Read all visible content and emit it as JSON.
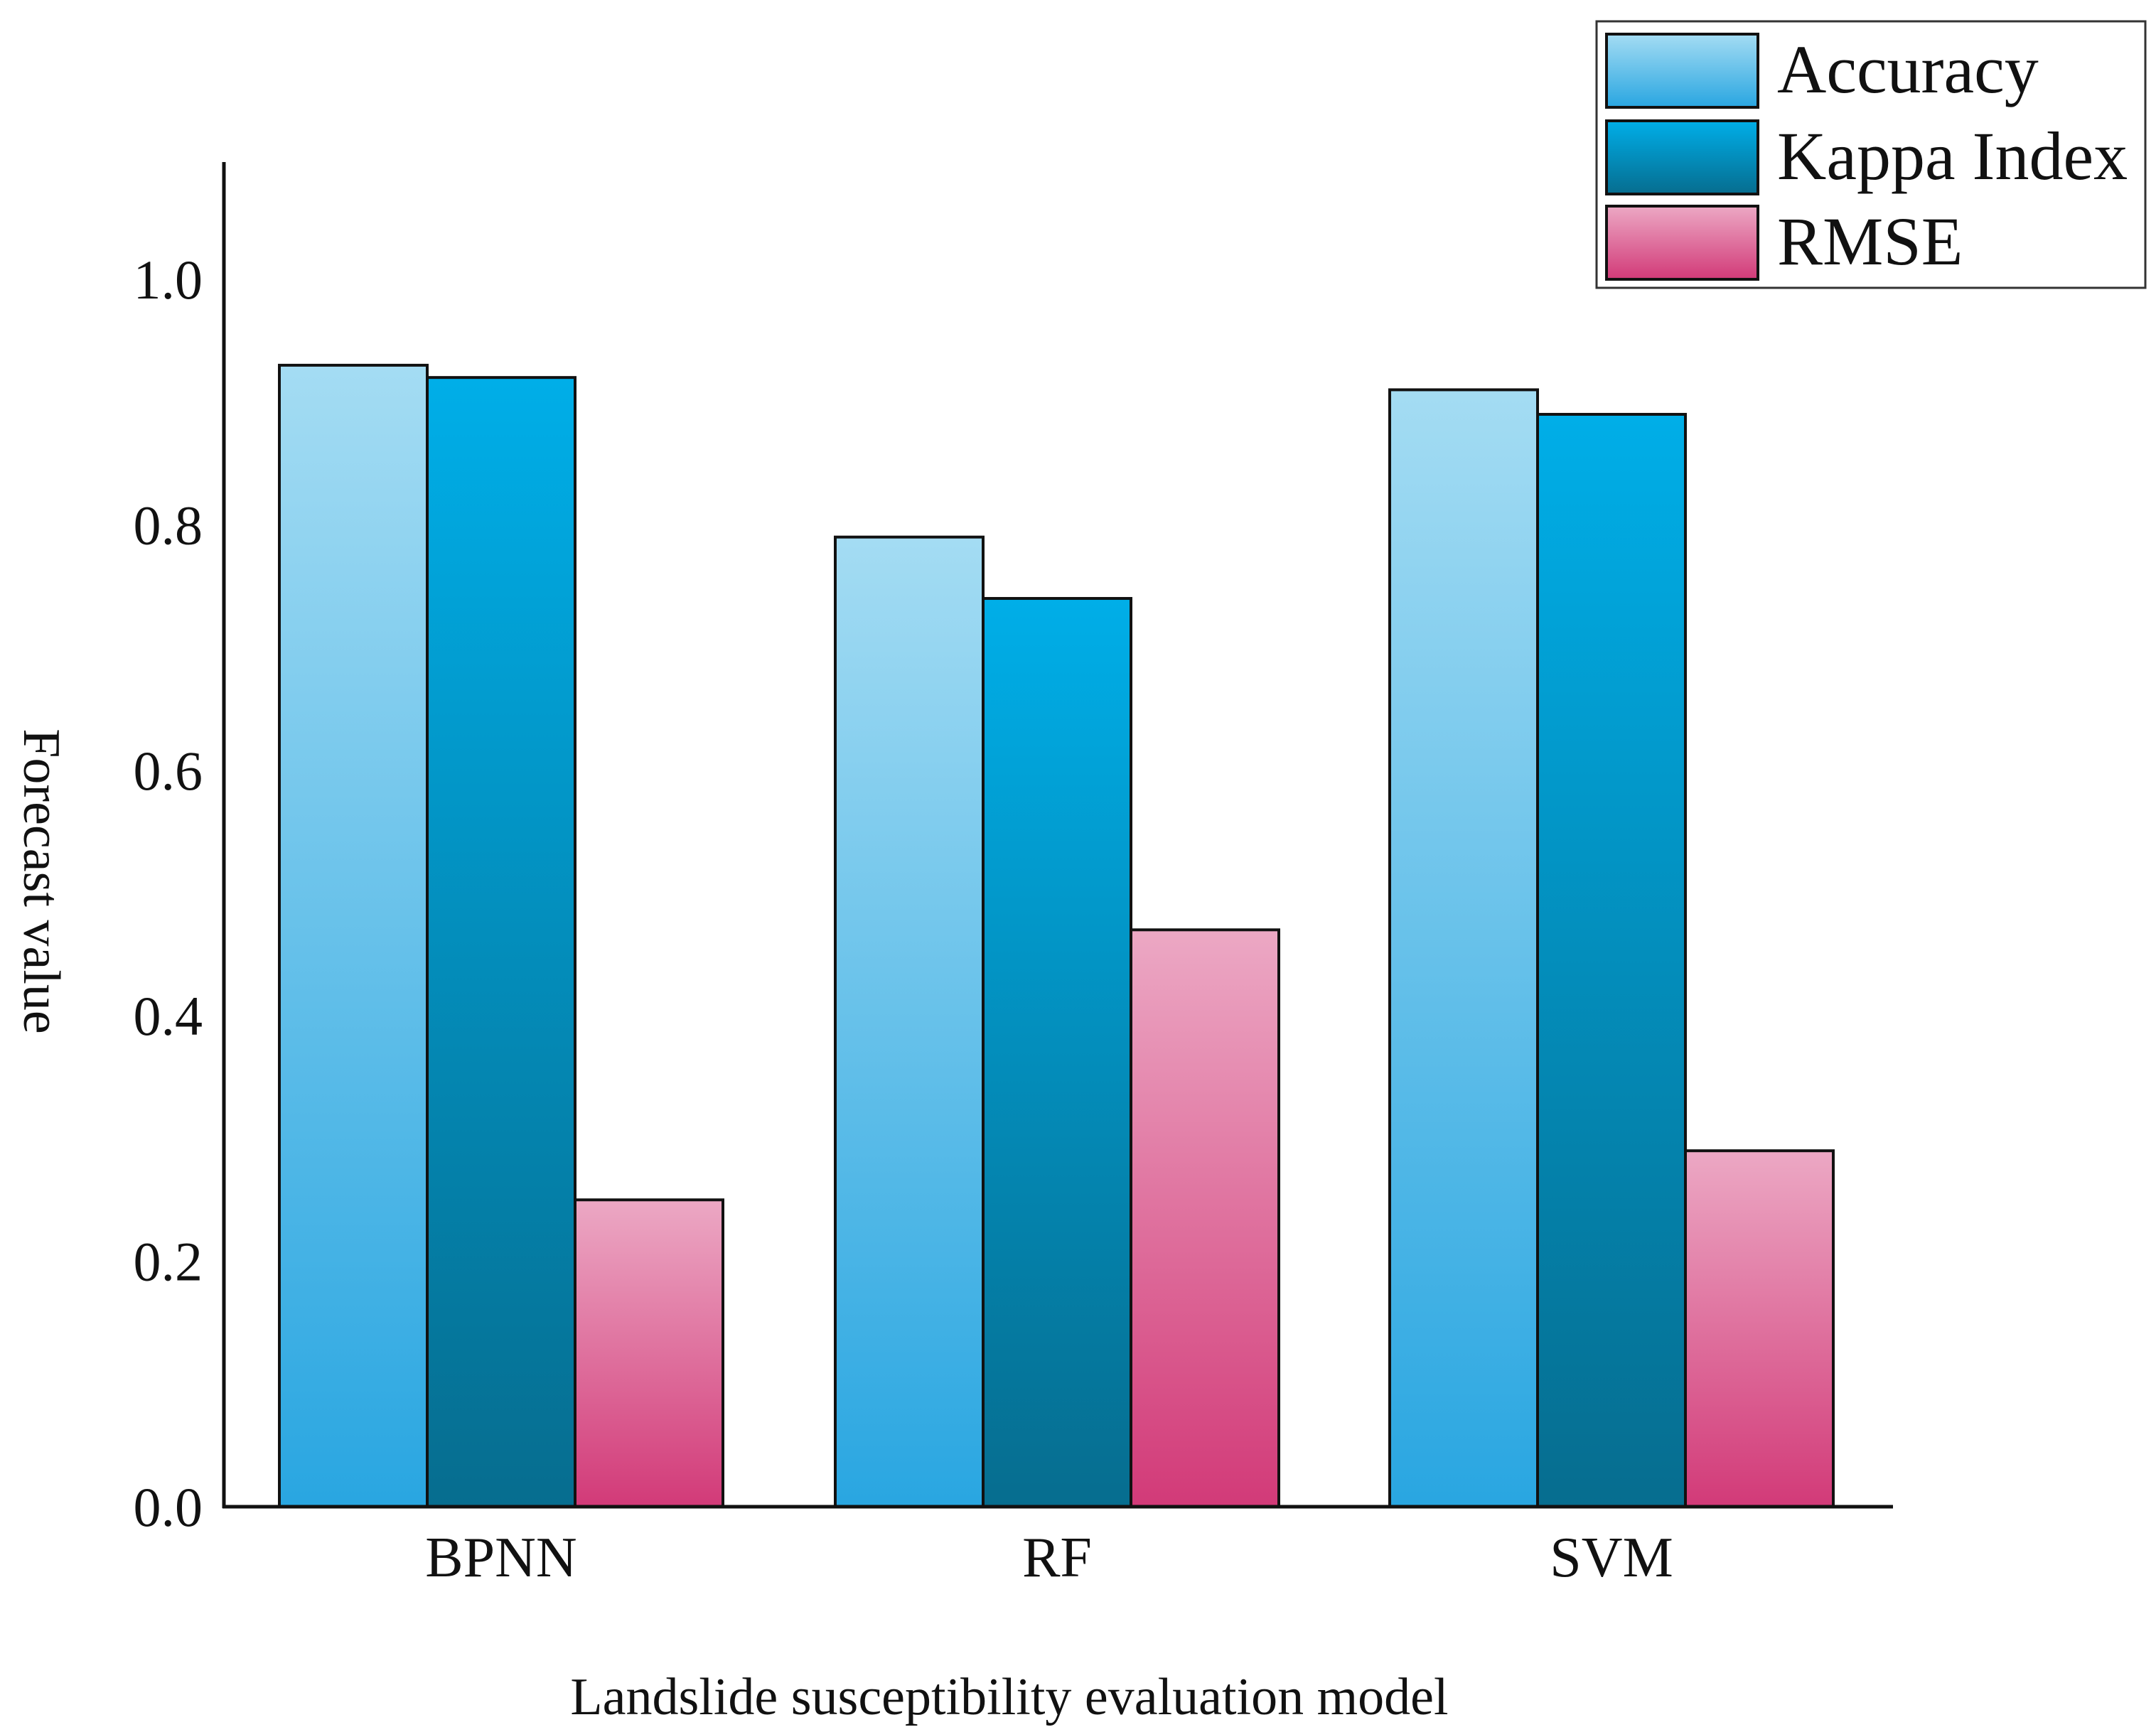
{
  "chart_data": {
    "type": "bar",
    "title": "",
    "xlabel": "Landslide susceptibility evaluation model",
    "ylabel": "Forecast value",
    "categories": [
      "BPNN",
      "RF",
      "SVM"
    ],
    "series": [
      {
        "name": "Accuracy",
        "values": [
          0.93,
          0.79,
          0.91
        ],
        "color_top": "#a4dcf3",
        "color_bottom": "#29a6e1"
      },
      {
        "name": "Kappa Index",
        "values": [
          0.92,
          0.74,
          0.89
        ],
        "color_top": "#00aee8",
        "color_bottom": "#066d8f"
      },
      {
        "name": "RMSE",
        "values": [
          0.25,
          0.47,
          0.29
        ],
        "color_top": "#eca8c4",
        "color_bottom": "#d23a78"
      }
    ],
    "ylim": [
      0,
      1.1
    ],
    "yticks": [
      "0.0",
      "0.2",
      "0.4",
      "0.6",
      "0.8",
      "1.0"
    ],
    "legend_position": "top-right",
    "grid": false
  }
}
